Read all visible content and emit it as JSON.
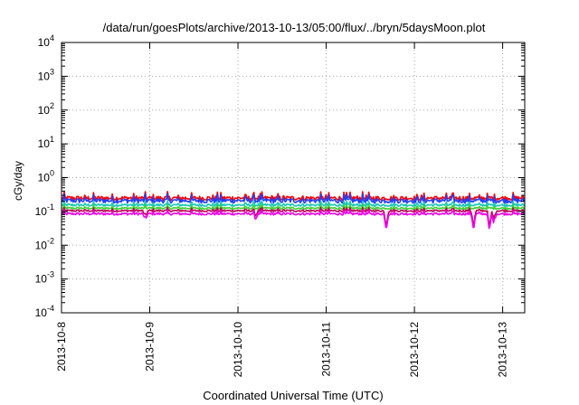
{
  "chart_data": {
    "type": "line",
    "title": "/data/run/goesPlots/archive/2013-10-13/05:00/flux/../bryn/5daysMoon.plot",
    "xlabel": "Coordinated Universal Time (UTC)",
    "ylabel": "cGy/day",
    "y_scale": "log",
    "ylim": [
      0.0001,
      10000
    ],
    "y_ticks": [
      {
        "label": "10",
        "exp": "-4",
        "value": 0.0001
      },
      {
        "label": "10",
        "exp": "-3",
        "value": 0.001
      },
      {
        "label": "10",
        "exp": "-2",
        "value": 0.01
      },
      {
        "label": "10",
        "exp": "-1",
        "value": 0.1
      },
      {
        "label": "10",
        "exp": "0",
        "value": 1
      },
      {
        "label": "10",
        "exp": "1",
        "value": 10
      },
      {
        "label": "10",
        "exp": "2",
        "value": 100
      },
      {
        "label": "10",
        "exp": "3",
        "value": 1000
      },
      {
        "label": "10",
        "exp": "4",
        "value": 10000
      }
    ],
    "xlim": [
      "2013-10-08 00:00",
      "2013-10-13 06:00"
    ],
    "x_ticks": [
      "2013-10-8",
      "2013-10-9",
      "2013-10-10",
      "2013-10-11",
      "2013-10-12",
      "2013-10-13"
    ],
    "grid": true,
    "series": [
      {
        "color": "#ff0000",
        "base": 0.25,
        "variability": 0.3
      },
      {
        "color": "#1f3fff",
        "base": 0.21,
        "variability": 0.32
      },
      {
        "color": "#17c9b5",
        "base": 0.155,
        "variability": 0.18
      },
      {
        "color": "#3cd12e",
        "base": 0.125,
        "variability": 0.15
      },
      {
        "color": "#c0005a",
        "base": 0.105,
        "variability": 0.14
      },
      {
        "color": "#ee00ee",
        "base": 0.085,
        "variability": 0.16
      }
    ],
    "dips": [
      {
        "day": 0.95,
        "value": 0.055
      },
      {
        "day": 2.2,
        "value": 0.06
      },
      {
        "day": 3.68,
        "value": 0.025
      },
      {
        "day": 4.67,
        "value": 0.025
      },
      {
        "day": 4.85,
        "value": 0.022
      },
      {
        "day": 4.9,
        "value": 0.045
      }
    ]
  }
}
